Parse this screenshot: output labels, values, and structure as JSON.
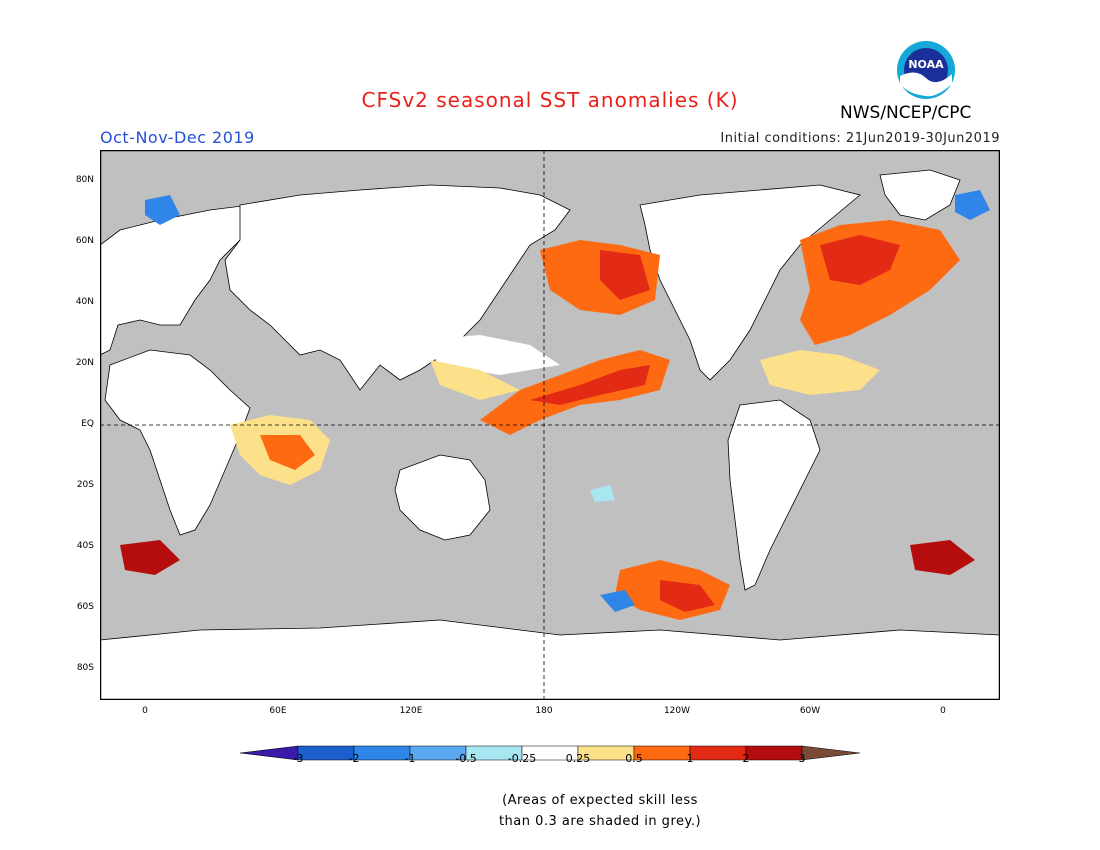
{
  "title": "CFSv2 seasonal SST anomalies (K)",
  "season": "Oct-Nov-Dec 2019",
  "initial_conditions": "Initial conditions: 21Jun2019-30Jun2019",
  "organization": "NWS/NCEP/CPC",
  "logo_text": "NOAA",
  "lat_labels": [
    "80N",
    "60N",
    "40N",
    "20N",
    "EQ",
    "20S",
    "40S",
    "60S",
    "80S"
  ],
  "lon_labels": [
    "0",
    "60E",
    "120E",
    "180",
    "120W",
    "60W",
    "0"
  ],
  "colorbar": {
    "labels": [
      "-3",
      "-2",
      "-1",
      "-0.5",
      "-0.25",
      "0.25",
      "0.5",
      "1",
      "2",
      "3"
    ],
    "colors": [
      "#3a1aa8",
      "#1e5fd0",
      "#2f86e8",
      "#5aa8f0",
      "#a8e6f2",
      "#ffffff",
      "#fde08a",
      "#fe6a12",
      "#e32a14",
      "#b50d0d",
      "#7a4a36"
    ]
  },
  "note_line1": "(Areas of expected skill less",
  "note_line2": "than 0.3 are shaded in grey.)",
  "colors": {
    "grey_no_skill": "#c0c0c0",
    "land": "#ffffff",
    "title": "#e8211b",
    "season": "#2350d6"
  }
}
